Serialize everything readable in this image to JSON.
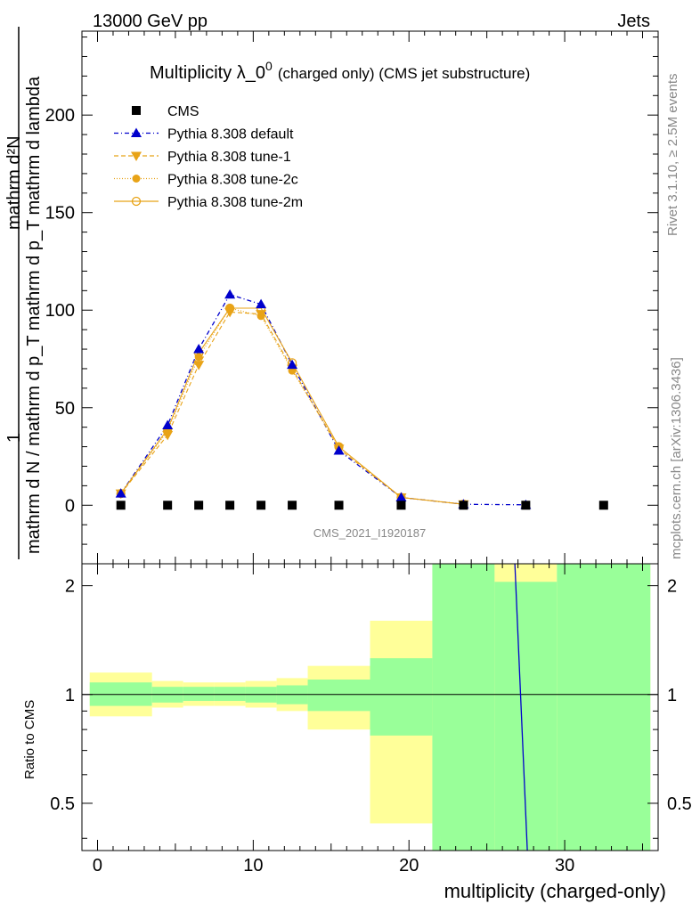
{
  "header": {
    "left": "13000 GeV pp",
    "right": "Jets"
  },
  "side_labels": {
    "rivet": "Rivet 3.1.10, ≥ 2.5M events",
    "mcplots": "mcplots.cern.ch [arXiv:1306.3436]"
  },
  "analysis_id": "CMS_2021_I1920187",
  "colors": {
    "default": "#0000cc",
    "tunes": "#e8a317",
    "green_band": "#99ff99",
    "yellow_band": "#ffff99",
    "cms": "#000000"
  },
  "chart_data": [
    {
      "type": "line",
      "title": "Multiplicity λ_0",
      "title_sup": "0",
      "title_suffix": "(charged only) (CMS jet substructure)",
      "ylabel_numerator": "mathrm d²N",
      "ylabel_denominator": "mathrm d N / mathrm d p_T mathrm d p_T mathrm d lambda",
      "ylabel_prefix": "1",
      "xlim": [
        -1,
        36
      ],
      "ylim": [
        -30,
        243
      ],
      "yticks": [
        0,
        50,
        100,
        150,
        200
      ],
      "x": [
        1.5,
        4.5,
        6.5,
        8.5,
        10.5,
        12.5,
        15.5,
        19.5,
        23.5,
        27.5,
        32.5
      ],
      "series": [
        {
          "name": "CMS",
          "marker": "square",
          "values": [
            0,
            0,
            0,
            0,
            0,
            0,
            0,
            0,
            0,
            0,
            0
          ]
        },
        {
          "name": "Pythia 8.308 default",
          "marker": "triangle-up",
          "values": [
            6,
            41,
            80,
            108,
            103,
            72,
            28,
            4,
            0.5,
            0.2,
            null
          ]
        },
        {
          "name": "Pythia 8.308 tune-1",
          "marker": "triangle-down",
          "values": [
            6,
            36,
            72,
            99,
            98,
            70,
            29,
            4,
            0.5,
            null,
            null
          ]
        },
        {
          "name": "Pythia 8.308 tune-2c",
          "marker": "circle",
          "values": [
            6,
            38,
            76,
            101,
            97,
            69,
            30,
            4,
            0.5,
            null,
            null
          ]
        },
        {
          "name": "Pythia 8.308 tune-2m",
          "marker": "circle-open",
          "values": [
            6,
            39,
            78,
            101,
            101,
            73,
            30,
            4,
            0.5,
            null,
            null
          ]
        }
      ]
    },
    {
      "type": "area",
      "ylabel": "Ratio to CMS",
      "xlabel": "multiplicity (charged-only)",
      "xlim": [
        -1,
        36
      ],
      "ylim": [
        0.37,
        2.3
      ],
      "xticks": [
        0,
        10,
        20,
        30
      ],
      "yticks": [
        0.5,
        1,
        2
      ],
      "bins": [
        {
          "lo": -0.5,
          "hi": 3.5,
          "green": [
            0.93,
            1.08
          ],
          "yellow": [
            0.87,
            1.15
          ]
        },
        {
          "lo": 3.5,
          "hi": 5.5,
          "green": [
            0.95,
            1.05
          ],
          "yellow": [
            0.92,
            1.09
          ]
        },
        {
          "lo": 5.5,
          "hi": 7.5,
          "green": [
            0.96,
            1.05
          ],
          "yellow": [
            0.93,
            1.08
          ]
        },
        {
          "lo": 7.5,
          "hi": 9.5,
          "green": [
            0.96,
            1.05
          ],
          "yellow": [
            0.93,
            1.08
          ]
        },
        {
          "lo": 9.5,
          "hi": 11.5,
          "green": [
            0.95,
            1.05
          ],
          "yellow": [
            0.92,
            1.09
          ]
        },
        {
          "lo": 11.5,
          "hi": 13.5,
          "green": [
            0.94,
            1.06
          ],
          "yellow": [
            0.9,
            1.11
          ]
        },
        {
          "lo": 13.5,
          "hi": 17.5,
          "green": [
            0.9,
            1.1
          ],
          "yellow": [
            0.8,
            1.2
          ]
        },
        {
          "lo": 17.5,
          "hi": 21.5,
          "green": [
            0.77,
            1.26
          ],
          "yellow": [
            0.44,
            1.6
          ]
        },
        {
          "lo": 21.5,
          "hi": 25.5,
          "green": [
            0.37,
            2.3
          ],
          "yellow": [
            0.37,
            2.3
          ]
        },
        {
          "lo": 25.5,
          "hi": 29.5,
          "green": [
            0.37,
            2.05
          ],
          "yellow": [
            0.37,
            2.3
          ]
        },
        {
          "lo": 29.5,
          "hi": 35.5,
          "green": [
            0.37,
            2.3
          ],
          "yellow": [
            0.37,
            2.3
          ]
        }
      ],
      "default_ratio_line": [
        [
          26.8,
          2.3
        ],
        [
          27.6,
          0.37
        ]
      ]
    }
  ]
}
